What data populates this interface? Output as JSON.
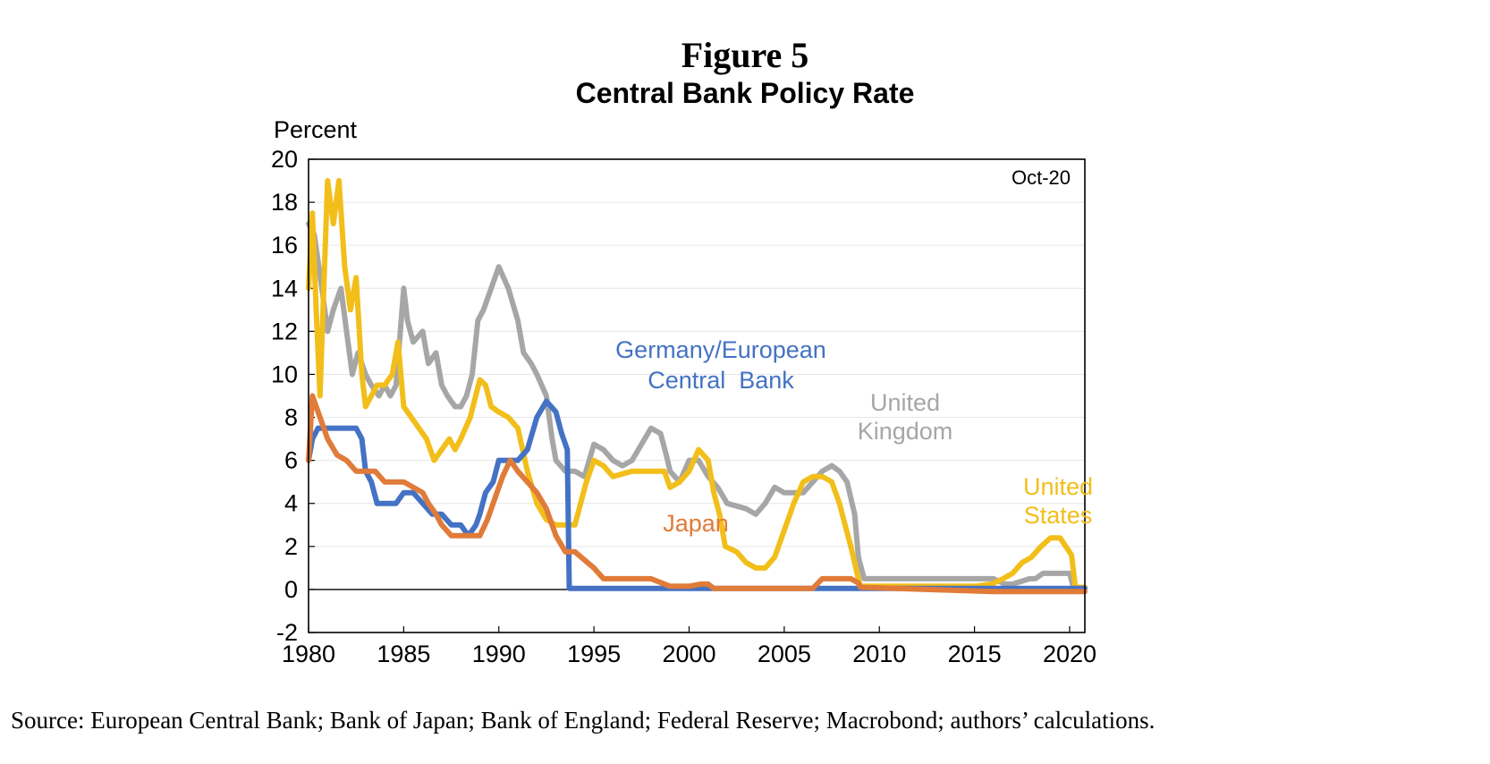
{
  "figure_number": "Figure 5",
  "source_note": "Source: European Central Bank; Bank of Japan; Bank of England; Federal Reserve; Macrobond; authors’ calculations.",
  "chart_data": {
    "type": "line",
    "title": "Central Bank Policy Rate",
    "ylabel": "Percent",
    "xlabel": "",
    "xlim": [
      1980,
      2020.8
    ],
    "ylim": [
      -2,
      20
    ],
    "x_ticks": [
      1980,
      1985,
      1990,
      1995,
      2000,
      2005,
      2010,
      2015,
      2020
    ],
    "y_ticks": [
      -2,
      0,
      2,
      4,
      6,
      8,
      10,
      12,
      14,
      16,
      18,
      20
    ],
    "grid": "horizontal",
    "corner_note": "Oct-20",
    "series": [
      {
        "name": "United Kingdom",
        "label_lines": [
          "United",
          "Kingdom"
        ],
        "color": "#a6a6a6",
        "x": [
          1980.0,
          1980.3,
          1980.7,
          1981.0,
          1981.3,
          1981.7,
          1982.0,
          1982.3,
          1982.6,
          1983.0,
          1983.3,
          1983.7,
          1984.0,
          1984.3,
          1984.6,
          1985.0,
          1985.2,
          1985.5,
          1986.0,
          1986.3,
          1986.7,
          1987.0,
          1987.3,
          1987.7,
          1988.0,
          1988.3,
          1988.6,
          1988.9,
          1989.2,
          1989.6,
          1990.0,
          1990.5,
          1991.0,
          1991.3,
          1991.7,
          1992.0,
          1992.5,
          1992.8,
          1993.0,
          1993.5,
          1994.0,
          1994.5,
          1995.0,
          1995.5,
          1996.0,
          1996.5,
          1997.0,
          1997.5,
          1998.0,
          1998.5,
          1998.8,
          1999.0,
          1999.5,
          2000.0,
          2000.5,
          2001.0,
          2001.5,
          2002.0,
          2003.0,
          2003.5,
          2004.0,
          2004.5,
          2005.0,
          2005.5,
          2006.0,
          2006.5,
          2007.0,
          2007.5,
          2007.9,
          2008.3,
          2008.7,
          2008.9,
          2009.2,
          2010.0,
          2012.0,
          2014.0,
          2016.0,
          2016.6,
          2017.0,
          2017.9,
          2018.2,
          2018.6,
          2019.0,
          2020.0,
          2020.2,
          2020.8
        ],
        "y": [
          17,
          16.5,
          14,
          12,
          13,
          14,
          12,
          10,
          11,
          10,
          9.5,
          9,
          9.5,
          9,
          9.5,
          14,
          12.5,
          11.5,
          12,
          10.5,
          11,
          9.5,
          9,
          8.5,
          8.5,
          9,
          10,
          12.5,
          13,
          14,
          15,
          14,
          12.5,
          11,
          10.5,
          10,
          9,
          7,
          6,
          5.5,
          5.5,
          5.25,
          6.75,
          6.5,
          6,
          5.75,
          6,
          6.75,
          7.5,
          7.25,
          6.25,
          5.5,
          5,
          6,
          6,
          5.25,
          4.75,
          4,
          3.75,
          3.5,
          4,
          4.75,
          4.5,
          4.5,
          4.5,
          5,
          5.5,
          5.75,
          5.5,
          5,
          3.5,
          1.5,
          0.5,
          0.5,
          0.5,
          0.5,
          0.5,
          0.25,
          0.25,
          0.5,
          0.5,
          0.75,
          0.75,
          0.75,
          0.1,
          0.1
        ]
      },
      {
        "name": "United States",
        "label_lines": [
          "United",
          "States"
        ],
        "color": "#f2be1a",
        "x": [
          1980.0,
          1980.2,
          1980.4,
          1980.6,
          1980.8,
          1981.0,
          1981.3,
          1981.6,
          1981.9,
          1982.2,
          1982.5,
          1982.8,
          1983.0,
          1983.3,
          1983.6,
          1984.0,
          1984.4,
          1984.7,
          1985.0,
          1985.4,
          1985.8,
          1986.2,
          1986.6,
          1987.0,
          1987.4,
          1987.7,
          1988.0,
          1988.5,
          1989.0,
          1989.3,
          1989.6,
          1990.0,
          1990.5,
          1991.0,
          1991.5,
          1992.0,
          1992.5,
          1993.0,
          1993.5,
          1994.0,
          1994.3,
          1994.6,
          1995.0,
          1995.5,
          1996.0,
          1997.0,
          1998.0,
          1998.7,
          1999.0,
          1999.5,
          2000.0,
          2000.5,
          2001.0,
          2001.3,
          2001.6,
          2001.9,
          2002.5,
          2003.0,
          2003.5,
          2004.0,
          2004.5,
          2005.0,
          2005.5,
          2006.0,
          2006.5,
          2007.0,
          2007.5,
          2007.9,
          2008.2,
          2008.5,
          2008.9,
          2009.0,
          2015.0,
          2015.9,
          2016.5,
          2017.0,
          2017.5,
          2018.0,
          2018.5,
          2019.0,
          2019.5,
          2019.8,
          2020.1,
          2020.3,
          2020.8
        ],
        "y": [
          14,
          17.5,
          13,
          9,
          14,
          19,
          17,
          19,
          15,
          13,
          14.5,
          10,
          8.5,
          9,
          9.5,
          9.5,
          10,
          11.5,
          8.5,
          8,
          7.5,
          7,
          6,
          6.5,
          7,
          6.5,
          7,
          8,
          9.75,
          9.5,
          8.5,
          8.25,
          8,
          7.5,
          5.5,
          4,
          3.25,
          3,
          3,
          3,
          4,
          5,
          6,
          5.75,
          5.25,
          5.5,
          5.5,
          5.5,
          4.75,
          5,
          5.5,
          6.5,
          6,
          4.5,
          3.5,
          2,
          1.75,
          1.25,
          1,
          1,
          1.5,
          2.75,
          4,
          5,
          5.25,
          5.25,
          5,
          4,
          3,
          2,
          0.5,
          0.15,
          0.15,
          0.25,
          0.5,
          0.75,
          1.25,
          1.5,
          2,
          2.4,
          2.4,
          2,
          1.6,
          0.1,
          0.1
        ]
      },
      {
        "name": "Germany/European Central Bank",
        "label_lines": [
          "Germany/European",
          "Central  Bank"
        ],
        "color": "#4472c4",
        "x": [
          1980.0,
          1980.2,
          1980.5,
          1981.0,
          1982.0,
          1982.5,
          1982.8,
          1983.0,
          1983.3,
          1983.6,
          1984.0,
          1984.6,
          1985.0,
          1985.5,
          1986.0,
          1986.5,
          1987.0,
          1987.5,
          1988.0,
          1988.4,
          1988.8,
          1989.0,
          1989.3,
          1989.7,
          1990.0,
          1990.5,
          1991.0,
          1991.5,
          1992.0,
          1992.5,
          1993.0,
          1993.3,
          1993.6,
          1993.7,
          1998.8,
          1999.0,
          2020.8
        ],
        "y": [
          6,
          7,
          7.5,
          7.5,
          7.5,
          7.5,
          7,
          5.5,
          5,
          4,
          4,
          4,
          4.5,
          4.5,
          4,
          3.5,
          3.5,
          3,
          3,
          2.5,
          3,
          3.5,
          4.5,
          5,
          6,
          6,
          6,
          6.5,
          8,
          8.75,
          8.25,
          7.25,
          6.5,
          0.05,
          0.05,
          0.05,
          0.05
        ]
      },
      {
        "name": "Japan",
        "label_lines": [
          "Japan"
        ],
        "color": "#e07b39",
        "x": [
          1980.0,
          1980.2,
          1980.6,
          1981.0,
          1981.5,
          1982.0,
          1982.5,
          1983.0,
          1983.5,
          1984.0,
          1985.0,
          1986.0,
          1986.3,
          1986.7,
          1987.0,
          1987.5,
          1988.0,
          1988.5,
          1989.0,
          1989.4,
          1989.8,
          1990.2,
          1990.6,
          1991.0,
          1991.5,
          1992.0,
          1992.5,
          1993.0,
          1993.5,
          1994.0,
          1995.0,
          1995.5,
          1996.0,
          1998.0,
          1999.0,
          2000.0,
          2000.6,
          2001.0,
          2001.3,
          2006.5,
          2007.0,
          2007.5,
          2008.5,
          2008.9,
          2009.0,
          2016.0,
          2020.8
        ],
        "y": [
          6,
          9,
          8,
          7,
          6.25,
          6,
          5.5,
          5.5,
          5.5,
          5,
          5,
          4.5,
          4,
          3.5,
          3,
          2.5,
          2.5,
          2.5,
          2.5,
          3.25,
          4.25,
          5.25,
          6,
          5.5,
          5,
          4.5,
          3.75,
          2.5,
          1.75,
          1.75,
          1,
          0.5,
          0.5,
          0.5,
          0.15,
          0.15,
          0.25,
          0.25,
          0.05,
          0.05,
          0.5,
          0.5,
          0.5,
          0.3,
          0.1,
          -0.1,
          -0.1
        ]
      }
    ]
  }
}
